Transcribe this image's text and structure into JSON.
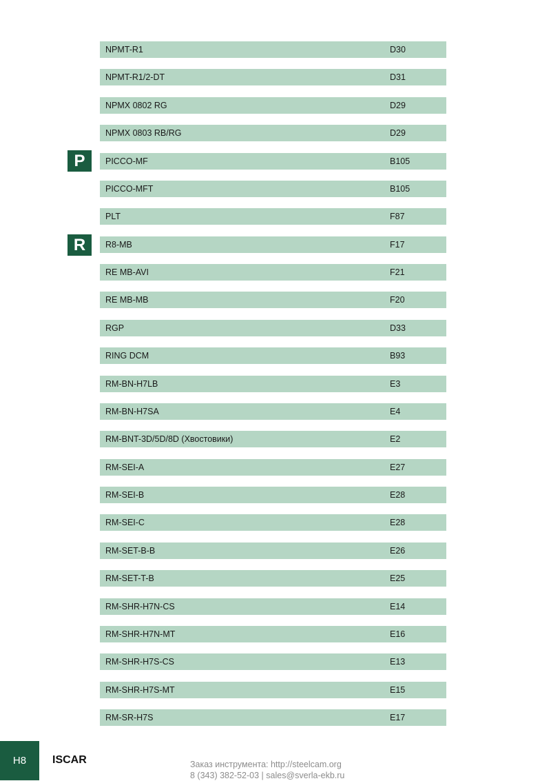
{
  "index": {
    "rows": [
      {
        "name": "NPMT-R1",
        "page": "D30"
      },
      {
        "name": "NPMT-R1/2-DT",
        "page": "D31"
      },
      {
        "name": "NPMX 0802 RG",
        "page": "D29"
      },
      {
        "name": "NPMX 0803 RB/RG",
        "page": "D29"
      },
      {
        "name": "PICCO-MF",
        "page": "B105"
      },
      {
        "name": "PICCO-MFT",
        "page": "B105"
      },
      {
        "name": "PLT",
        "page": "F87"
      },
      {
        "name": "R8-MB",
        "page": "F17"
      },
      {
        "name": "RE MB-AVI",
        "page": "F21"
      },
      {
        "name": "RE MB-MB",
        "page": "F20"
      },
      {
        "name": "RGP",
        "page": "D33"
      },
      {
        "name": "RING DCM",
        "page": "B93"
      },
      {
        "name": "RM-BN-H7LB",
        "page": "E3"
      },
      {
        "name": "RM-BN-H7SA",
        "page": "E4"
      },
      {
        "name": "RM-BNT-3D/5D/8D (Хвостовики)",
        "page": "E2"
      },
      {
        "name": "RM-SEI-A",
        "page": "E27"
      },
      {
        "name": "RM-SEI-B",
        "page": "E28"
      },
      {
        "name": "RM-SEI-C",
        "page": "E28"
      },
      {
        "name": "RM-SET-B-B",
        "page": "E26"
      },
      {
        "name": "RM-SET-T-B",
        "page": "E25"
      },
      {
        "name": "RM-SHR-H7N-CS",
        "page": "E14"
      },
      {
        "name": "RM-SHR-H7N-MT",
        "page": "E16"
      },
      {
        "name": "RM-SHR-H7S-CS",
        "page": "E13"
      },
      {
        "name": "RM-SHR-H7S-MT",
        "page": "E15"
      },
      {
        "name": "RM-SR-H7S",
        "page": "E17"
      }
    ]
  },
  "section_markers": [
    {
      "letter": "P"
    },
    {
      "letter": "R"
    }
  ],
  "footer": {
    "page_number": "H8",
    "brand": "ISCAR",
    "order_line": "Заказ инструмента: http://steelcam.org",
    "contact_line": "8 (343) 382-52-03  |  sales@sverla-ekb.ru"
  },
  "colors": {
    "row_background": "#b5d6c4",
    "accent_green": "#1a5c40",
    "footer_text_gray": "#8c8c8c"
  }
}
